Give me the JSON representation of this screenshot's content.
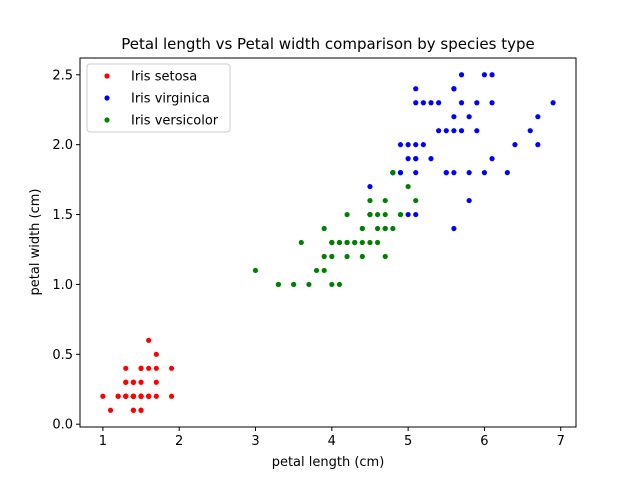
{
  "chart_data": {
    "type": "scatter",
    "title": "Petal length vs Petal width comparison by species type",
    "xlabel": "petal length (cm)",
    "ylabel": "petal width (cm)",
    "xlim": [
      0.7,
      7.2
    ],
    "ylim": [
      -0.02,
      2.62
    ],
    "xticks": [
      1,
      2,
      3,
      4,
      5,
      6,
      7
    ],
    "xtick_labels": [
      "1",
      "2",
      "3",
      "4",
      "5",
      "6",
      "7"
    ],
    "yticks": [
      0.0,
      0.5,
      1.0,
      1.5,
      2.0,
      2.5
    ],
    "ytick_labels": [
      "0.0",
      "0.5",
      "1.0",
      "1.5",
      "2.0",
      "2.5"
    ],
    "grid": false,
    "legend_position": "top-left",
    "series": [
      {
        "name": "Iris setosa",
        "color": "#ff0000",
        "points": [
          [
            1.4,
            0.2
          ],
          [
            1.4,
            0.2
          ],
          [
            1.3,
            0.2
          ],
          [
            1.5,
            0.2
          ],
          [
            1.4,
            0.2
          ],
          [
            1.7,
            0.4
          ],
          [
            1.4,
            0.3
          ],
          [
            1.5,
            0.2
          ],
          [
            1.4,
            0.2
          ],
          [
            1.5,
            0.1
          ],
          [
            1.5,
            0.2
          ],
          [
            1.6,
            0.2
          ],
          [
            1.4,
            0.1
          ],
          [
            1.1,
            0.1
          ],
          [
            1.2,
            0.2
          ],
          [
            1.5,
            0.4
          ],
          [
            1.3,
            0.4
          ],
          [
            1.4,
            0.3
          ],
          [
            1.7,
            0.3
          ],
          [
            1.5,
            0.3
          ],
          [
            1.7,
            0.2
          ],
          [
            1.5,
            0.4
          ],
          [
            1.0,
            0.2
          ],
          [
            1.7,
            0.5
          ],
          [
            1.9,
            0.2
          ],
          [
            1.6,
            0.2
          ],
          [
            1.6,
            0.4
          ],
          [
            1.5,
            0.2
          ],
          [
            1.4,
            0.2
          ],
          [
            1.6,
            0.2
          ],
          [
            1.6,
            0.2
          ],
          [
            1.5,
            0.4
          ],
          [
            1.5,
            0.1
          ],
          [
            1.4,
            0.2
          ],
          [
            1.5,
            0.2
          ],
          [
            1.2,
            0.2
          ],
          [
            1.3,
            0.2
          ],
          [
            1.4,
            0.1
          ],
          [
            1.3,
            0.2
          ],
          [
            1.5,
            0.2
          ],
          [
            1.3,
            0.3
          ],
          [
            1.3,
            0.3
          ],
          [
            1.3,
            0.2
          ],
          [
            1.6,
            0.6
          ],
          [
            1.9,
            0.4
          ],
          [
            1.4,
            0.3
          ],
          [
            1.6,
            0.2
          ],
          [
            1.4,
            0.2
          ],
          [
            1.5,
            0.2
          ],
          [
            1.4,
            0.2
          ]
        ]
      },
      {
        "name": "Iris virginica",
        "color": "#0000ff",
        "points": [
          [
            6.0,
            2.5
          ],
          [
            5.1,
            1.9
          ],
          [
            5.9,
            2.1
          ],
          [
            5.6,
            1.8
          ],
          [
            5.8,
            2.2
          ],
          [
            6.6,
            2.1
          ],
          [
            4.5,
            1.7
          ],
          [
            6.3,
            1.8
          ],
          [
            5.8,
            1.8
          ],
          [
            6.1,
            2.5
          ],
          [
            5.1,
            2.0
          ],
          [
            5.3,
            1.9
          ],
          [
            5.5,
            2.1
          ],
          [
            5.0,
            2.0
          ],
          [
            5.1,
            2.4
          ],
          [
            5.3,
            2.3
          ],
          [
            5.5,
            1.8
          ],
          [
            6.7,
            2.2
          ],
          [
            6.9,
            2.3
          ],
          [
            5.0,
            1.5
          ],
          [
            5.7,
            2.3
          ],
          [
            4.9,
            2.0
          ],
          [
            6.7,
            2.0
          ],
          [
            4.9,
            1.8
          ],
          [
            5.7,
            2.1
          ],
          [
            6.0,
            1.8
          ],
          [
            4.8,
            1.8
          ],
          [
            4.9,
            1.8
          ],
          [
            5.6,
            2.1
          ],
          [
            5.8,
            1.6
          ],
          [
            6.1,
            1.9
          ],
          [
            6.4,
            2.0
          ],
          [
            5.6,
            2.2
          ],
          [
            5.1,
            1.5
          ],
          [
            5.6,
            1.4
          ],
          [
            6.1,
            2.3
          ],
          [
            5.6,
            2.4
          ],
          [
            5.5,
            1.8
          ],
          [
            4.8,
            1.8
          ],
          [
            5.4,
            2.1
          ],
          [
            5.6,
            2.4
          ],
          [
            5.1,
            2.3
          ],
          [
            5.1,
            1.9
          ],
          [
            5.9,
            2.3
          ],
          [
            5.7,
            2.5
          ],
          [
            5.2,
            2.3
          ],
          [
            5.0,
            1.9
          ],
          [
            5.2,
            2.0
          ],
          [
            5.4,
            2.3
          ],
          [
            5.1,
            1.8
          ]
        ]
      },
      {
        "name": "Iris versicolor",
        "color": "#008000",
        "points": [
          [
            4.7,
            1.4
          ],
          [
            4.5,
            1.5
          ],
          [
            4.9,
            1.5
          ],
          [
            4.0,
            1.3
          ],
          [
            4.6,
            1.5
          ],
          [
            4.5,
            1.3
          ],
          [
            4.7,
            1.6
          ],
          [
            3.3,
            1.0
          ],
          [
            4.6,
            1.3
          ],
          [
            3.9,
            1.4
          ],
          [
            3.5,
            1.0
          ],
          [
            4.2,
            1.5
          ],
          [
            4.0,
            1.0
          ],
          [
            4.7,
            1.4
          ],
          [
            3.6,
            1.3
          ],
          [
            4.4,
            1.4
          ],
          [
            4.5,
            1.5
          ],
          [
            4.1,
            1.0
          ],
          [
            4.5,
            1.5
          ],
          [
            3.9,
            1.1
          ],
          [
            4.8,
            1.8
          ],
          [
            4.0,
            1.3
          ],
          [
            4.9,
            1.5
          ],
          [
            4.7,
            1.2
          ],
          [
            4.3,
            1.3
          ],
          [
            4.4,
            1.4
          ],
          [
            4.8,
            1.4
          ],
          [
            5.0,
            1.7
          ],
          [
            4.5,
            1.5
          ],
          [
            3.5,
            1.0
          ],
          [
            3.8,
            1.1
          ],
          [
            3.7,
            1.0
          ],
          [
            3.9,
            1.2
          ],
          [
            5.1,
            1.6
          ],
          [
            4.5,
            1.5
          ],
          [
            4.5,
            1.6
          ],
          [
            4.7,
            1.5
          ],
          [
            4.4,
            1.3
          ],
          [
            4.1,
            1.3
          ],
          [
            4.0,
            1.3
          ],
          [
            4.4,
            1.2
          ],
          [
            4.6,
            1.4
          ],
          [
            4.0,
            1.2
          ],
          [
            3.3,
            1.0
          ],
          [
            4.2,
            1.3
          ],
          [
            4.2,
            1.2
          ],
          [
            4.2,
            1.3
          ],
          [
            4.3,
            1.3
          ],
          [
            3.0,
            1.1
          ],
          [
            4.1,
            1.3
          ]
        ]
      }
    ]
  }
}
